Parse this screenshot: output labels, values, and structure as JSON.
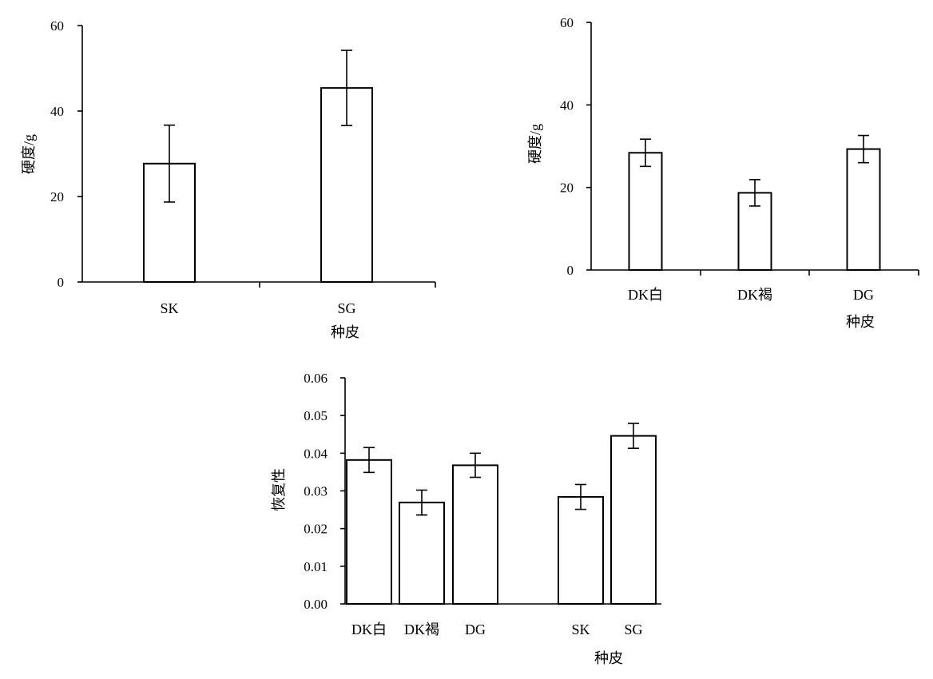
{
  "chart_data": [
    {
      "type": "bar",
      "categories": [
        "SK",
        "SG"
      ],
      "values": [
        27.7,
        45.4
      ],
      "errors": [
        9.0,
        8.8
      ],
      "xlabel": "种皮",
      "ylabel": "硬度/g",
      "ylim": [
        0,
        60
      ],
      "yticks": [
        "0",
        "20",
        "40",
        "60"
      ],
      "grid": false,
      "legend": "none"
    },
    {
      "type": "bar",
      "categories": [
        "DK白",
        "DK褐",
        "DG"
      ],
      "values": [
        28.4,
        18.7,
        29.3
      ],
      "errors": [
        3.3,
        3.2,
        3.3
      ],
      "xlabel": "种皮",
      "ylabel": "硬度/g",
      "ylim": [
        0,
        60
      ],
      "yticks": [
        "0",
        "20",
        "40",
        "60"
      ],
      "grid": false,
      "legend": "none"
    },
    {
      "type": "bar",
      "categories": [
        "DK白",
        "DK褐",
        "DG",
        "SK",
        "SG"
      ],
      "values": [
        0.0382,
        0.0269,
        0.0368,
        0.0284,
        0.0446
      ],
      "errors": [
        0.0033,
        0.0033,
        0.0032,
        0.0033,
        0.0033
      ],
      "xlabel": "种皮",
      "ylabel": "恢复性",
      "ylim": [
        0,
        0.06
      ],
      "yticks": [
        "0.00",
        "0.01",
        "0.02",
        "0.03",
        "0.04",
        "0.05",
        "0.06"
      ],
      "grid": false,
      "legend": "none"
    }
  ]
}
